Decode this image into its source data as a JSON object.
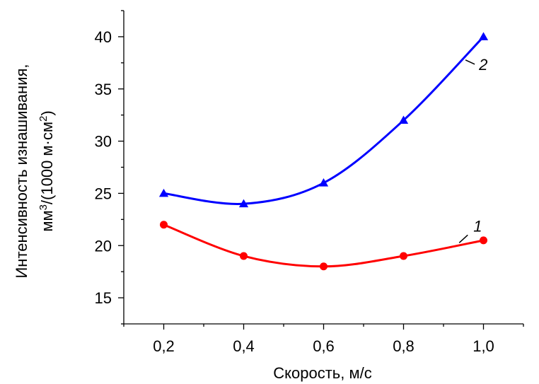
{
  "chart_data": {
    "type": "line",
    "xlabel": "Скорость, м/с",
    "ylabel_line1": "Интенсивность изнашивания,",
    "ylabel_line2_parts": [
      "мм",
      "3",
      "/(1000 м·см",
      "2",
      ")"
    ],
    "x_ticks": [
      0.2,
      0.4,
      0.6,
      0.8,
      1.0
    ],
    "x_tick_labels": [
      "0,2",
      "0,4",
      "0,6",
      "0,8",
      "1,0"
    ],
    "y_ticks": [
      15,
      20,
      25,
      30,
      35,
      40
    ],
    "y_tick_labels": [
      "15",
      "20",
      "25",
      "30",
      "35",
      "40"
    ],
    "xlim": [
      0.1,
      1.1
    ],
    "ylim": [
      12.5,
      42.5
    ],
    "grid": false,
    "series": [
      {
        "name": "1",
        "color": "#ff0000",
        "marker": "circle",
        "x": [
          0.2,
          0.4,
          0.6,
          0.8,
          1.0
        ],
        "y": [
          22.0,
          19.0,
          18.0,
          19.0,
          20.5
        ]
      },
      {
        "name": "2",
        "color": "#0000ff",
        "marker": "triangle",
        "x": [
          0.2,
          0.4,
          0.6,
          0.8,
          1.0
        ],
        "y": [
          25.0,
          24.0,
          26.0,
          32.0,
          40.0
        ]
      }
    ]
  }
}
